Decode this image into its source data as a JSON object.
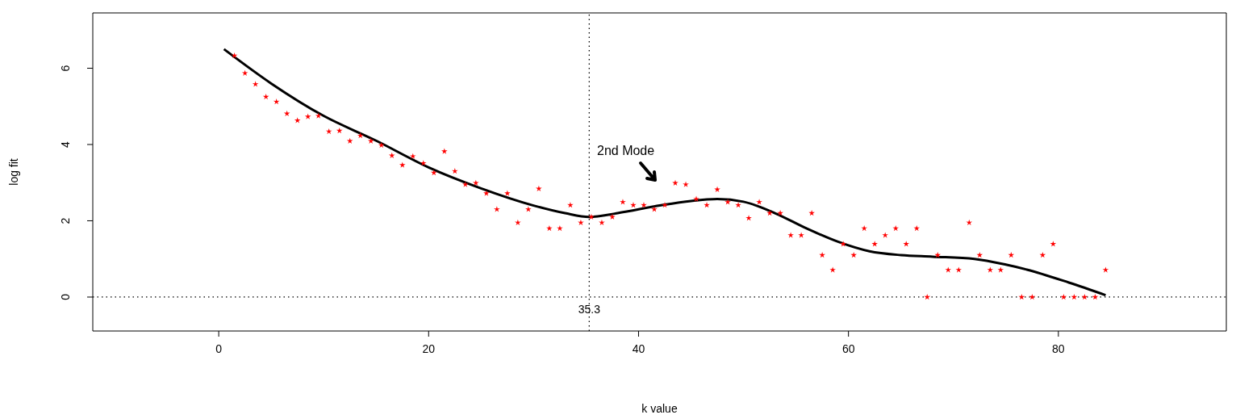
{
  "chart_data": {
    "type": "scatter",
    "xlabel": "k value",
    "ylabel": "log fit",
    "xlim": [
      -12,
      96
    ],
    "ylim": [
      -0.89,
      7.45
    ],
    "xticks": [
      0,
      20,
      40,
      60,
      80
    ],
    "yticks": [
      0,
      2,
      4,
      6
    ],
    "grid": false,
    "legend": false,
    "series": [
      {
        "color": "#ff0000",
        "marker": "star",
        "x": [
          1.5,
          2.5,
          3.5,
          4.5,
          5.5,
          6.5,
          7.5,
          8.5,
          9.5,
          10.5,
          11.5,
          12.5,
          13.5,
          14.5,
          15.5,
          16.5,
          17.5,
          18.5,
          19.5,
          20.5,
          21.5,
          22.5,
          23.5,
          24.5,
          25.5,
          26.5,
          27.5,
          28.5,
          29.5,
          30.5,
          31.5,
          32.5,
          33.5,
          34.5,
          35.5,
          36.5,
          37.5,
          38.5,
          39.5,
          40.5,
          41.5,
          42.5,
          43.5,
          44.5,
          45.5,
          46.5,
          47.5,
          48.5,
          49.5,
          50.5,
          51.5,
          52.5,
          53.5,
          54.5,
          55.5,
          56.5,
          57.5,
          58.5,
          59.5,
          60.5,
          61.5,
          62.5,
          63.5,
          64.5,
          65.5,
          66.5,
          67.5,
          68.5,
          69.5,
          70.5,
          71.5,
          72.5,
          73.5,
          74.5,
          75.5,
          76.5,
          77.5,
          78.5,
          79.5,
          80.5,
          81.5,
          82.5,
          83.5,
          84.5
        ],
        "values": [
          6.33,
          5.87,
          5.58,
          5.25,
          5.12,
          4.81,
          4.63,
          4.73,
          4.75,
          4.34,
          4.36,
          4.09,
          4.23,
          4.09,
          3.98,
          3.71,
          3.46,
          3.69,
          3.51,
          3.26,
          3.82,
          3.3,
          2.95,
          2.99,
          2.72,
          2.3,
          2.72,
          1.95,
          2.3,
          2.84,
          1.8,
          1.8,
          2.41,
          1.95,
          2.1,
          1.95,
          2.1,
          2.49,
          2.41,
          2.41,
          2.3,
          2.41,
          2.99,
          2.95,
          2.57,
          2.41,
          2.82,
          2.49,
          2.41,
          2.07,
          2.49,
          2.2,
          2.2,
          1.62,
          1.62,
          2.2,
          1.1,
          0.71,
          1.39,
          1.1,
          1.8,
          1.39,
          1.62,
          1.8,
          1.39,
          1.8,
          0,
          1.1,
          0.71,
          0.71,
          1.95,
          1.1,
          0.71,
          0.71,
          1.1,
          0,
          0,
          1.1,
          1.39,
          0,
          0,
          0,
          0,
          0.71
        ]
      },
      {
        "type": "line",
        "color": "#000000",
        "marker": "none",
        "line_style": "solid",
        "x": [
          0.5,
          5,
          10,
          15,
          20,
          25,
          30,
          33,
          35.3,
          38,
          42,
          45,
          47.5,
          50,
          53,
          56,
          59,
          62,
          65,
          68,
          72,
          75,
          77,
          81,
          84.5
        ],
        "values": [
          6.5,
          5.6,
          4.75,
          4.1,
          3.4,
          2.85,
          2.4,
          2.2,
          2.1,
          2.2,
          2.4,
          2.52,
          2.57,
          2.5,
          2.2,
          1.8,
          1.45,
          1.2,
          1.1,
          1.06,
          1.0,
          0.85,
          0.72,
          0.38,
          0.05
        ]
      }
    ],
    "ref_lines": [
      {
        "axis": "x",
        "value": 35.3,
        "label": "35.3",
        "line_style": "dotted",
        "color": "#000000"
      },
      {
        "axis": "y",
        "value": 0,
        "line_style": "dotted",
        "color": "#000000"
      }
    ],
    "annotations": [
      "2nd Mode"
    ]
  }
}
